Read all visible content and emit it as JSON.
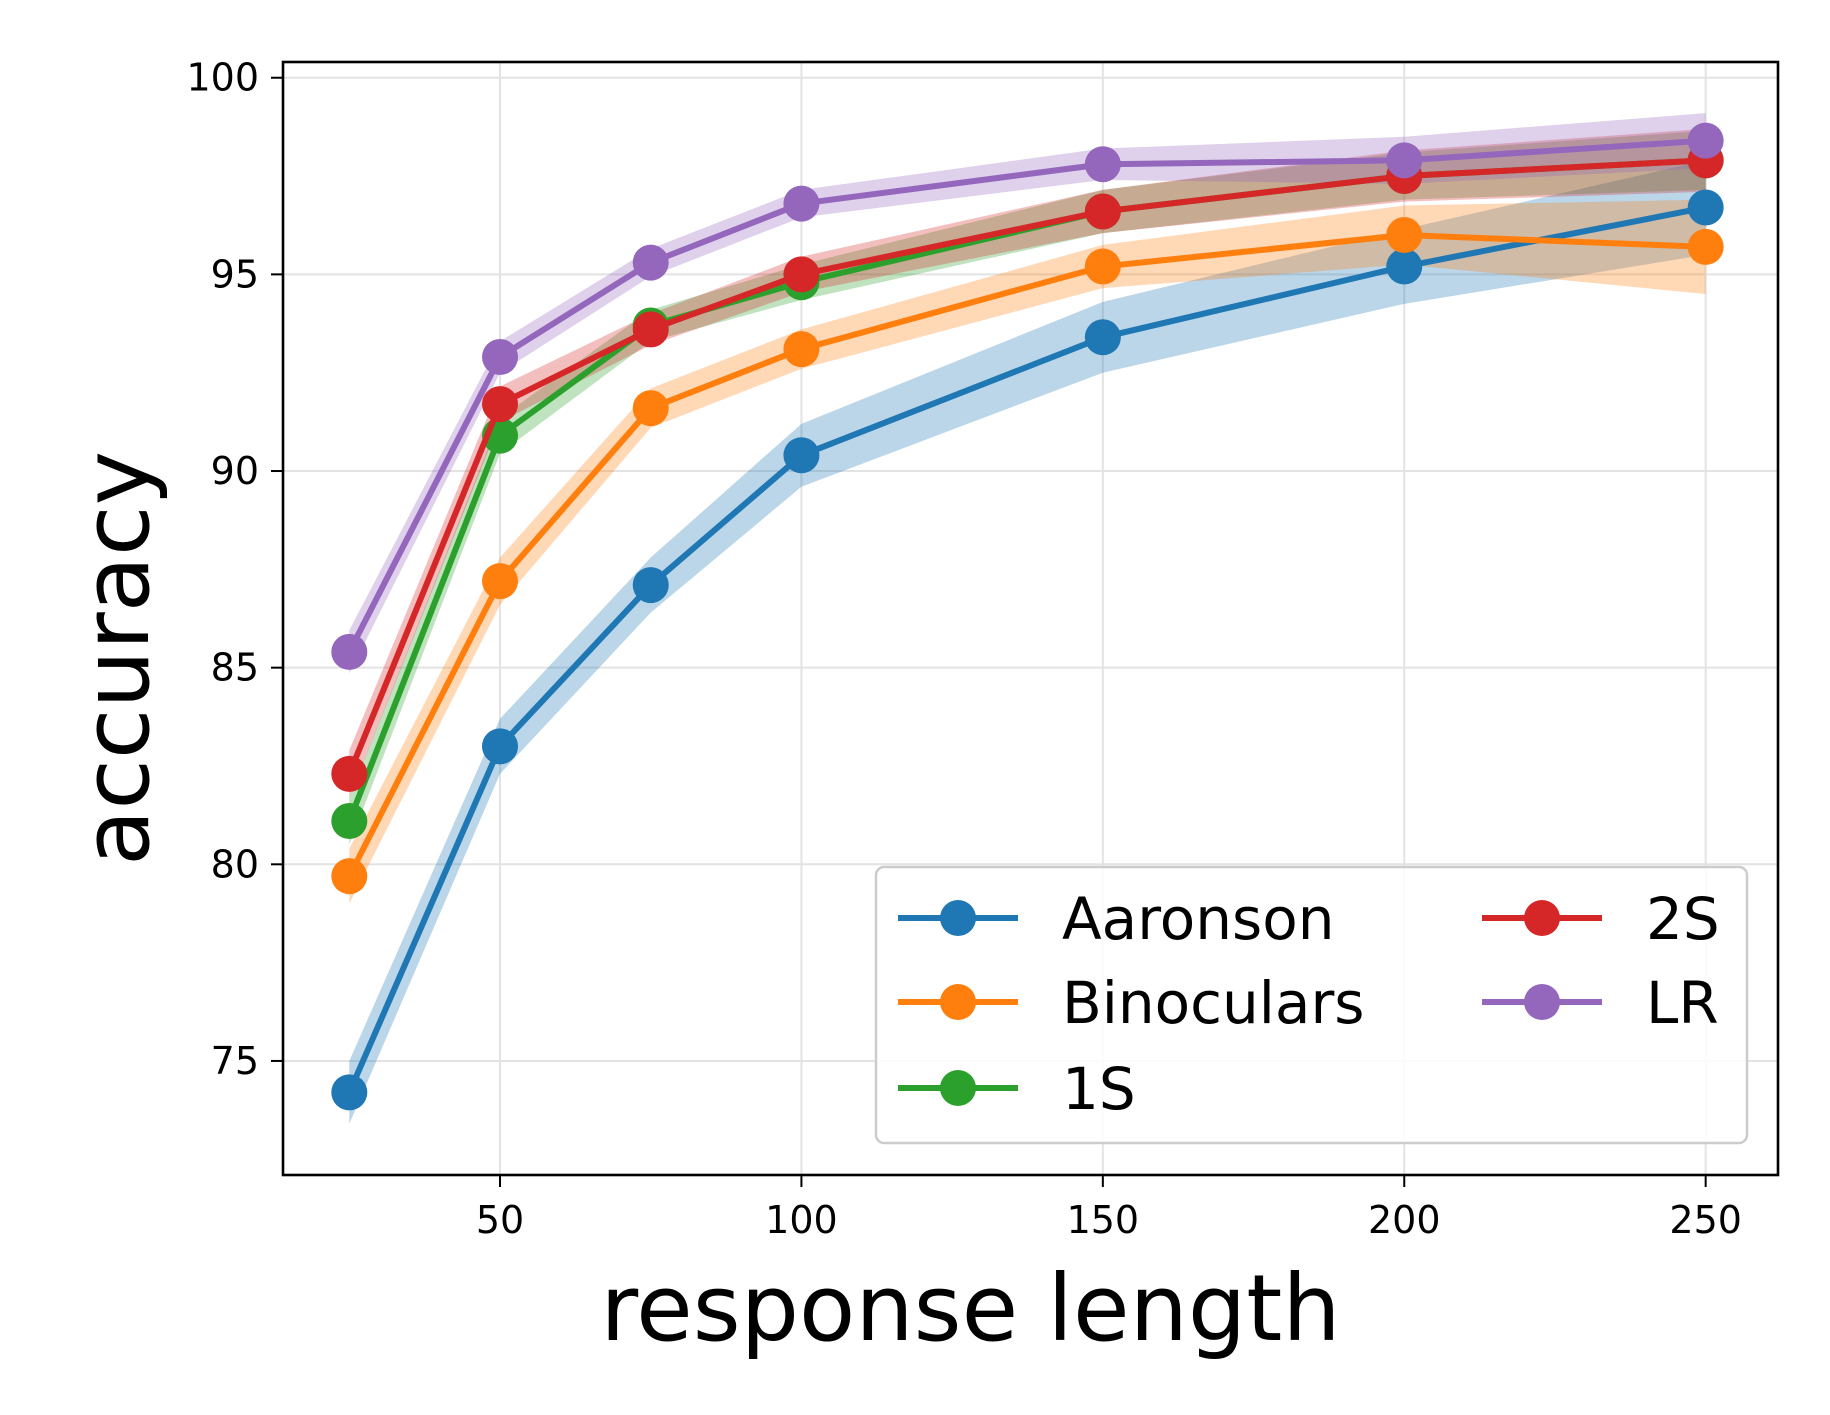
{
  "chart_data": {
    "type": "line",
    "title": "",
    "xlabel": "response length",
    "ylabel": "accuracy",
    "xlim": [
      14,
      262
    ],
    "ylim": [
      72.1,
      100.4
    ],
    "xticks": [
      50,
      100,
      150,
      200,
      250
    ],
    "xtick_labels": [
      "50",
      "100",
      "150",
      "200",
      "250"
    ],
    "yticks": [
      75,
      80,
      85,
      90,
      95,
      100
    ],
    "ytick_labels": [
      "75",
      "80",
      "85",
      "90",
      "95",
      "100"
    ],
    "grid": true,
    "legend_position": "lower-right",
    "x": [
      25,
      50,
      75,
      100,
      150,
      200,
      250
    ],
    "series": [
      {
        "name": "Aaronson",
        "color": "#1f77b4",
        "values": [
          74.2,
          83.0,
          87.1,
          90.4,
          93.4,
          95.2,
          96.7
        ],
        "band": [
          0.8,
          0.7,
          0.7,
          0.8,
          0.9,
          0.95,
          1.2
        ]
      },
      {
        "name": "Binoculars",
        "color": "#ff7f0e",
        "values": [
          79.7,
          87.2,
          91.6,
          93.1,
          95.2,
          96.0,
          95.7
        ],
        "band": [
          0.7,
          0.6,
          0.5,
          0.5,
          0.55,
          0.75,
          1.2
        ]
      },
      {
        "name": "1S",
        "color": "#2ca02c",
        "values": [
          81.1,
          90.9,
          93.7,
          94.8,
          96.6,
          97.5,
          97.9
        ],
        "band": [
          0.6,
          0.45,
          0.4,
          0.45,
          0.55,
          0.6,
          0.75
        ]
      },
      {
        "name": "2S",
        "color": "#d62728",
        "values": [
          82.3,
          91.7,
          93.6,
          95.0,
          96.6,
          97.5,
          97.9
        ],
        "band": [
          0.6,
          0.45,
          0.4,
          0.45,
          0.55,
          0.65,
          0.8
        ]
      },
      {
        "name": "LR",
        "color": "#9467bd",
        "values": [
          85.4,
          92.9,
          95.3,
          96.8,
          97.8,
          97.9,
          98.4
        ],
        "band": [
          0.55,
          0.4,
          0.35,
          0.35,
          0.4,
          0.6,
          0.7
        ]
      }
    ]
  }
}
